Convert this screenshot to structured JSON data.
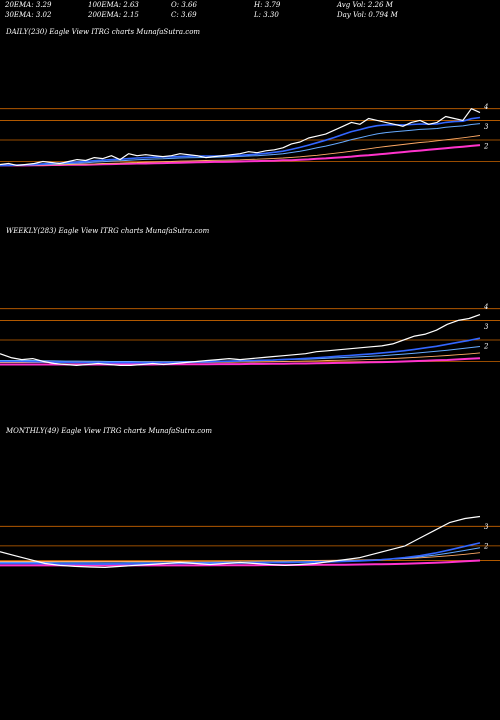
{
  "header": {
    "row1": [
      "20EMA: 3.29",
      "100EMA: 2.63",
      "O: 3.66",
      "H: 3.79",
      "Avg Vol: 2.26  M"
    ],
    "row2": [
      "30EMA: 3.02",
      "200EMA: 2.15",
      "C: 3.69",
      "L: 3.30",
      "Day Vol: 0.794  M"
    ]
  },
  "panels": [
    {
      "label": "DAILY(230) Eagle   View  ITRG charts MunafaSutra.com"
    },
    {
      "label": "WEEKLY(283) Eagle   View  ITRG charts MunafaSutra.com"
    },
    {
      "label": "MONTHLY(49) Eagle   View  ITRG charts MunafaSutra.com"
    }
  ],
  "colors": {
    "background": "#000000",
    "price": "#ffffff",
    "hline": "#cc6600",
    "ema_fast": "#3366ff",
    "ema_mid": "#66aaff",
    "ema_slow": "#ffaa66",
    "ema_200": "#ff33cc"
  },
  "chart_data": [
    {
      "type": "line",
      "title": "DAILY(230) Eagle   View  ITRG charts MunafaSutra.com",
      "ylim": [
        0,
        4.6
      ],
      "yticks": [
        2,
        3,
        4
      ],
      "hlines": [
        1.2,
        2.3,
        3.3,
        3.9
      ],
      "series": [
        {
          "values": [
            1.05,
            1.1,
            1.0,
            1.05,
            1.1,
            1.2,
            1.15,
            1.1,
            1.2,
            1.3,
            1.25,
            1.4,
            1.35,
            1.5,
            1.3,
            1.6,
            1.5,
            1.55,
            1.5,
            1.45,
            1.5,
            1.6,
            1.55,
            1.5,
            1.4,
            1.45,
            1.5,
            1.55,
            1.6,
            1.7,
            1.65,
            1.75,
            1.8,
            1.9,
            2.1,
            2.2,
            2.4,
            2.5,
            2.6,
            2.8,
            3.0,
            3.2,
            3.1,
            3.4,
            3.3,
            3.2,
            3.1,
            3.0,
            3.2,
            3.3,
            3.1,
            3.2,
            3.5,
            3.4,
            3.3,
            3.9,
            3.7
          ]
        },
        {
          "values": [
            1.0,
            1.0,
            1.02,
            1.03,
            1.05,
            1.08,
            1.1,
            1.12,
            1.15,
            1.18,
            1.2,
            1.24,
            1.27,
            1.3,
            1.32,
            1.35,
            1.38,
            1.4,
            1.42,
            1.43,
            1.44,
            1.46,
            1.47,
            1.48,
            1.48,
            1.48,
            1.49,
            1.5,
            1.52,
            1.55,
            1.58,
            1.62,
            1.67,
            1.73,
            1.82,
            1.92,
            2.04,
            2.16,
            2.29,
            2.43,
            2.58,
            2.73,
            2.83,
            2.95,
            3.03,
            3.07,
            3.08,
            3.07,
            3.09,
            3.12,
            3.11,
            3.12,
            3.2,
            3.24,
            3.26,
            3.39,
            3.45
          ]
        },
        {
          "values": [
            1.0,
            1.0,
            1.01,
            1.02,
            1.03,
            1.05,
            1.06,
            1.08,
            1.1,
            1.12,
            1.14,
            1.17,
            1.19,
            1.22,
            1.24,
            1.26,
            1.29,
            1.31,
            1.33,
            1.34,
            1.36,
            1.38,
            1.39,
            1.4,
            1.41,
            1.42,
            1.43,
            1.44,
            1.46,
            1.48,
            1.5,
            1.53,
            1.56,
            1.6,
            1.66,
            1.73,
            1.81,
            1.9,
            1.99,
            2.09,
            2.2,
            2.32,
            2.42,
            2.52,
            2.61,
            2.68,
            2.72,
            2.76,
            2.8,
            2.84,
            2.86,
            2.89,
            2.95,
            2.99,
            3.02,
            3.09,
            3.14
          ]
        },
        {
          "values": [
            1.0,
            1.0,
            1.0,
            1.01,
            1.01,
            1.02,
            1.03,
            1.04,
            1.05,
            1.06,
            1.07,
            1.08,
            1.1,
            1.11,
            1.12,
            1.14,
            1.15,
            1.17,
            1.18,
            1.19,
            1.2,
            1.22,
            1.23,
            1.24,
            1.25,
            1.26,
            1.27,
            1.28,
            1.29,
            1.31,
            1.32,
            1.34,
            1.36,
            1.38,
            1.41,
            1.44,
            1.48,
            1.52,
            1.57,
            1.62,
            1.67,
            1.73,
            1.79,
            1.85,
            1.91,
            1.97,
            2.02,
            2.07,
            2.12,
            2.17,
            2.21,
            2.26,
            2.31,
            2.36,
            2.41,
            2.47,
            2.53
          ]
        },
        {
          "values": [
            1.0,
            1.0,
            1.0,
            1.0,
            1.01,
            1.01,
            1.02,
            1.02,
            1.03,
            1.03,
            1.04,
            1.05,
            1.06,
            1.07,
            1.08,
            1.09,
            1.1,
            1.1,
            1.11,
            1.12,
            1.13,
            1.14,
            1.15,
            1.16,
            1.17,
            1.18,
            1.18,
            1.19,
            1.2,
            1.21,
            1.22,
            1.23,
            1.24,
            1.26,
            1.27,
            1.29,
            1.31,
            1.34,
            1.36,
            1.39,
            1.42,
            1.45,
            1.49,
            1.52,
            1.56,
            1.6,
            1.64,
            1.68,
            1.72,
            1.76,
            1.8,
            1.84,
            1.88,
            1.92,
            1.96,
            2.0,
            2.04
          ]
        }
      ]
    },
    {
      "type": "line",
      "title": "WEEKLY(283) Eagle   View  ITRG charts MunafaSutra.com",
      "ylim": [
        0,
        4.6
      ],
      "yticks": [
        2,
        3,
        4
      ],
      "hlines": [
        1.2,
        2.3,
        3.3,
        3.9
      ],
      "series": [
        {
          "values": [
            1.6,
            1.4,
            1.3,
            1.35,
            1.2,
            1.1,
            1.05,
            1.0,
            1.05,
            1.1,
            1.05,
            1.0,
            1.0,
            1.05,
            1.1,
            1.05,
            1.1,
            1.15,
            1.2,
            1.25,
            1.3,
            1.35,
            1.3,
            1.35,
            1.4,
            1.45,
            1.5,
            1.55,
            1.6,
            1.7,
            1.75,
            1.8,
            1.85,
            1.9,
            1.95,
            2.0,
            2.1,
            2.3,
            2.5,
            2.6,
            2.8,
            3.1,
            3.3,
            3.4,
            3.6
          ]
        },
        {
          "values": [
            1.2,
            1.2,
            1.2,
            1.19,
            1.18,
            1.17,
            1.16,
            1.15,
            1.15,
            1.15,
            1.14,
            1.14,
            1.14,
            1.14,
            1.14,
            1.15,
            1.15,
            1.16,
            1.17,
            1.18,
            1.2,
            1.21,
            1.23,
            1.24,
            1.26,
            1.28,
            1.31,
            1.33,
            1.36,
            1.39,
            1.43,
            1.47,
            1.51,
            1.55,
            1.59,
            1.64,
            1.69,
            1.75,
            1.82,
            1.9,
            1.98,
            2.08,
            2.18,
            2.28,
            2.39
          ]
        },
        {
          "values": [
            1.25,
            1.25,
            1.25,
            1.25,
            1.24,
            1.23,
            1.22,
            1.22,
            1.21,
            1.21,
            1.2,
            1.2,
            1.2,
            1.19,
            1.19,
            1.19,
            1.19,
            1.2,
            1.2,
            1.21,
            1.22,
            1.23,
            1.24,
            1.25,
            1.26,
            1.27,
            1.29,
            1.31,
            1.32,
            1.34,
            1.37,
            1.39,
            1.42,
            1.44,
            1.47,
            1.5,
            1.54,
            1.58,
            1.62,
            1.67,
            1.72,
            1.78,
            1.84,
            1.9,
            1.97
          ]
        },
        {
          "values": [
            1.15,
            1.15,
            1.15,
            1.15,
            1.15,
            1.15,
            1.14,
            1.14,
            1.14,
            1.14,
            1.14,
            1.14,
            1.14,
            1.14,
            1.14,
            1.14,
            1.14,
            1.15,
            1.15,
            1.15,
            1.16,
            1.16,
            1.17,
            1.17,
            1.18,
            1.19,
            1.2,
            1.21,
            1.22,
            1.23,
            1.25,
            1.26,
            1.28,
            1.29,
            1.31,
            1.33,
            1.35,
            1.38,
            1.41,
            1.44,
            1.47,
            1.51,
            1.55,
            1.59,
            1.64
          ]
        },
        {
          "values": [
            1.05,
            1.05,
            1.05,
            1.05,
            1.05,
            1.05,
            1.05,
            1.05,
            1.05,
            1.05,
            1.05,
            1.05,
            1.05,
            1.05,
            1.05,
            1.06,
            1.06,
            1.06,
            1.06,
            1.06,
            1.07,
            1.07,
            1.07,
            1.08,
            1.08,
            1.09,
            1.09,
            1.1,
            1.1,
            1.11,
            1.12,
            1.13,
            1.14,
            1.15,
            1.16,
            1.17,
            1.18,
            1.2,
            1.22,
            1.24,
            1.26,
            1.28,
            1.31,
            1.34,
            1.37
          ]
        }
      ]
    },
    {
      "type": "line",
      "title": "MONTHLY(49) Eagle   View  ITRG charts MunafaSutra.com",
      "ylim": [
        0,
        4.6
      ],
      "yticks": [
        2,
        3
      ],
      "hlines": [
        1.25,
        2.0,
        3.0
      ],
      "series": [
        {
          "values": [
            1.7,
            1.5,
            1.3,
            1.1,
            1.0,
            0.95,
            0.92,
            0.9,
            0.95,
            1.0,
            1.05,
            1.1,
            1.15,
            1.1,
            1.05,
            1.1,
            1.15,
            1.1,
            1.05,
            1.0,
            1.05,
            1.1,
            1.2,
            1.3,
            1.4,
            1.6,
            1.8,
            2.0,
            2.4,
            2.8,
            3.2,
            3.4,
            3.5
          ]
        },
        {
          "values": [
            1.1,
            1.1,
            1.1,
            1.09,
            1.08,
            1.08,
            1.07,
            1.07,
            1.08,
            1.08,
            1.09,
            1.1,
            1.1,
            1.11,
            1.11,
            1.12,
            1.12,
            1.13,
            1.14,
            1.14,
            1.15,
            1.16,
            1.18,
            1.2,
            1.23,
            1.27,
            1.33,
            1.4,
            1.5,
            1.63,
            1.8,
            1.98,
            2.15
          ]
        },
        {
          "values": [
            1.15,
            1.15,
            1.15,
            1.15,
            1.14,
            1.14,
            1.14,
            1.13,
            1.13,
            1.14,
            1.14,
            1.14,
            1.15,
            1.15,
            1.15,
            1.16,
            1.16,
            1.17,
            1.17,
            1.18,
            1.19,
            1.2,
            1.21,
            1.23,
            1.25,
            1.28,
            1.32,
            1.37,
            1.44,
            1.53,
            1.64,
            1.77,
            1.9
          ]
        },
        {
          "values": [
            1.2,
            1.2,
            1.2,
            1.2,
            1.2,
            1.2,
            1.2,
            1.2,
            1.2,
            1.2,
            1.2,
            1.2,
            1.2,
            1.21,
            1.21,
            1.21,
            1.22,
            1.22,
            1.23,
            1.23,
            1.24,
            1.25,
            1.26,
            1.27,
            1.28,
            1.3,
            1.32,
            1.35,
            1.39,
            1.44,
            1.5,
            1.57,
            1.65
          ]
        },
        {
          "values": [
            1.0,
            1.0,
            1.0,
            1.0,
            1.0,
            1.0,
            1.0,
            1.0,
            1.0,
            1.0,
            1.0,
            1.0,
            1.0,
            1.0,
            1.01,
            1.01,
            1.01,
            1.01,
            1.02,
            1.02,
            1.02,
            1.03,
            1.03,
            1.04,
            1.05,
            1.06,
            1.07,
            1.09,
            1.11,
            1.14,
            1.17,
            1.21,
            1.25
          ]
        }
      ]
    }
  ]
}
